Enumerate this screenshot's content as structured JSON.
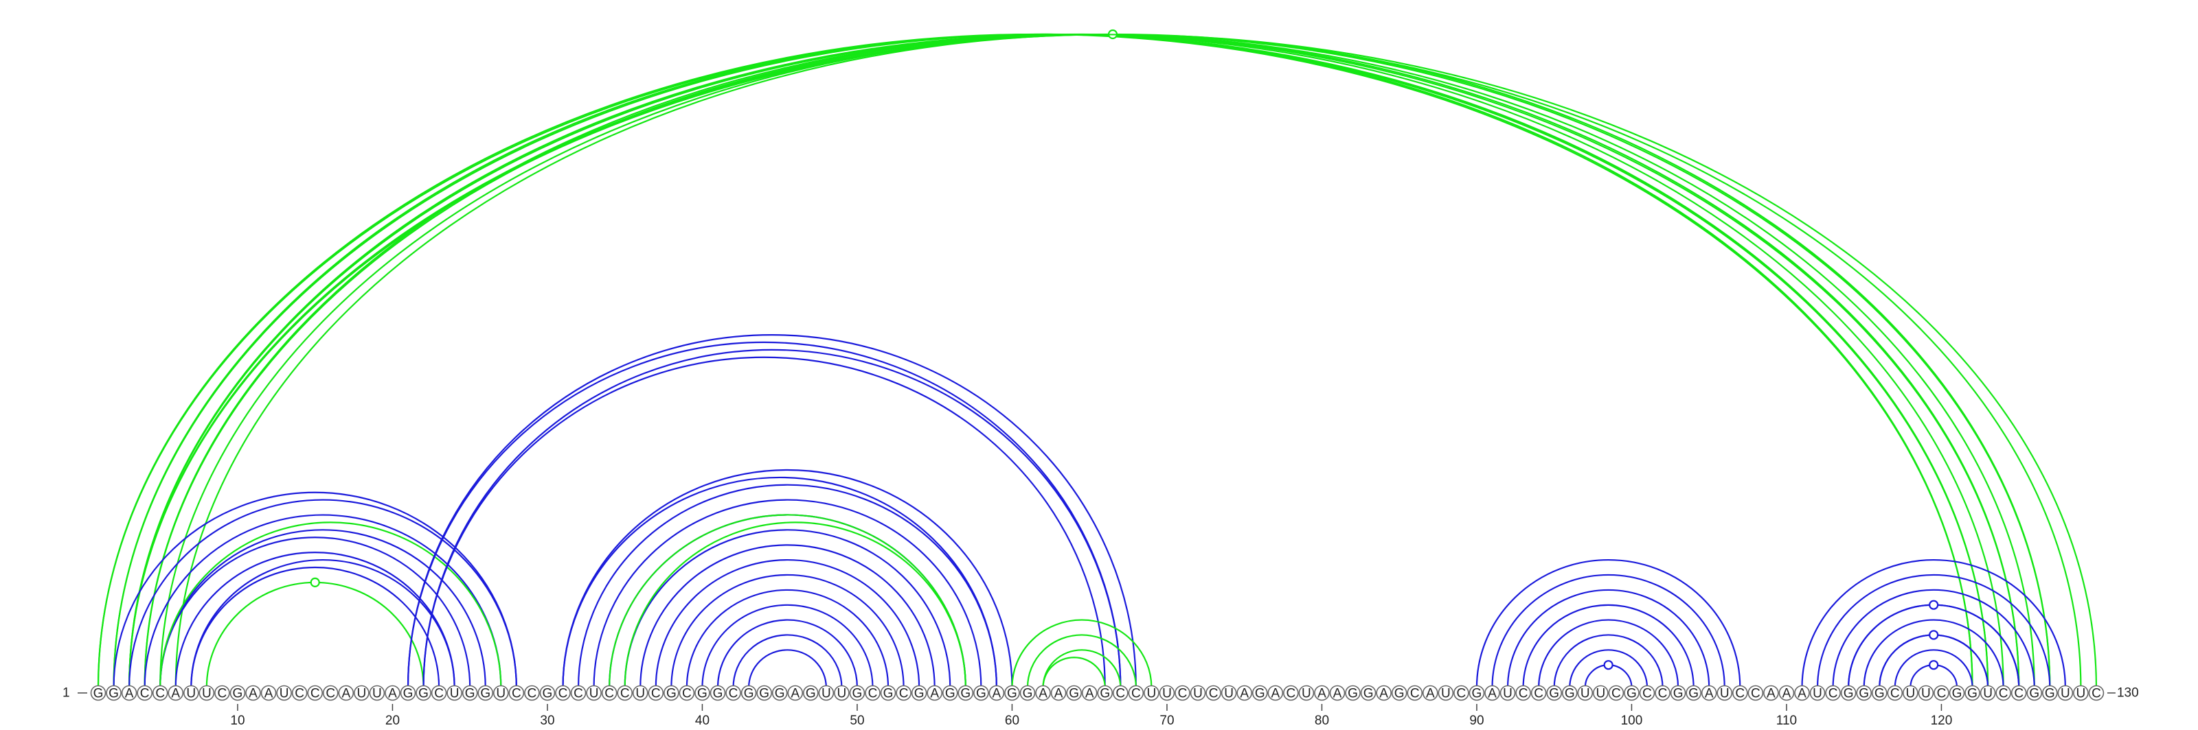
{
  "sequence": "GGACCAUUCGAAUCCCAUUAGGCUGGUCCGCCUCCUCGCGGCGGGAGUUGCGCGAGGGAGGAAGAGCCUUCUCUAGACUAAGGAGCAUCGAUCCGGUUCGCCGGAUCCAAAUCGGGCUUCGGUCCGGUUC",
  "start_label": "1",
  "end_label": "130",
  "ticks": [
    10,
    20,
    30,
    40,
    50,
    60,
    70,
    80,
    90,
    100,
    110,
    120
  ],
  "colors": {
    "blue": "#1a1adb",
    "green": "#14e614"
  },
  "arcs": [
    {
      "c": "green",
      "i": 1,
      "j": 122
    },
    {
      "c": "green",
      "i": 1,
      "j": 123
    },
    {
      "c": "green",
      "i": 2,
      "j": 122
    },
    {
      "c": "green",
      "i": 2,
      "j": 123
    },
    {
      "c": "green",
      "i": 3,
      "j": 124
    },
    {
      "c": "green",
      "i": 3,
      "j": 125
    },
    {
      "c": "green",
      "i": 4,
      "j": 125
    },
    {
      "c": "green",
      "i": 4,
      "j": 126
    },
    {
      "c": "green",
      "i": 5,
      "j": 127
    },
    {
      "c": "green",
      "i": 6,
      "j": 127
    },
    {
      "c": "green",
      "i": 3,
      "j": 130,
      "dot": true
    },
    {
      "c": "green",
      "i": 3,
      "j": 129
    },
    {
      "c": "blue",
      "i": 2,
      "j": 28
    },
    {
      "c": "blue",
      "i": 3,
      "j": 28
    },
    {
      "c": "blue",
      "i": 4,
      "j": 27
    },
    {
      "c": "blue",
      "i": 5,
      "j": 26
    },
    {
      "c": "blue",
      "i": 5,
      "j": 25
    },
    {
      "c": "blue",
      "i": 6,
      "j": 24
    },
    {
      "c": "blue",
      "i": 7,
      "j": 24
    },
    {
      "c": "blue",
      "i": 7,
      "j": 23
    },
    {
      "c": "green",
      "i": 5,
      "j": 27
    },
    {
      "c": "green",
      "i": 8,
      "j": 22,
      "dot": true
    },
    {
      "c": "blue",
      "i": 21,
      "j": 67
    },
    {
      "c": "blue",
      "i": 21,
      "j": 68
    },
    {
      "c": "blue",
      "i": 22,
      "j": 66
    },
    {
      "c": "blue",
      "i": 22,
      "j": 67
    },
    {
      "c": "blue",
      "i": 31,
      "j": 60
    },
    {
      "c": "blue",
      "i": 31,
      "j": 59
    },
    {
      "c": "blue",
      "i": 32,
      "j": 59
    },
    {
      "c": "blue",
      "i": 33,
      "j": 58
    },
    {
      "c": "blue",
      "i": 34,
      "j": 57
    },
    {
      "c": "blue",
      "i": 35,
      "j": 56
    },
    {
      "c": "blue",
      "i": 36,
      "j": 55
    },
    {
      "c": "blue",
      "i": 37,
      "j": 54
    },
    {
      "c": "blue",
      "i": 38,
      "j": 53
    },
    {
      "c": "blue",
      "i": 39,
      "j": 52
    },
    {
      "c": "blue",
      "i": 40,
      "j": 51
    },
    {
      "c": "blue",
      "i": 41,
      "j": 50
    },
    {
      "c": "blue",
      "i": 42,
      "j": 49
    },
    {
      "c": "blue",
      "i": 43,
      "j": 48
    },
    {
      "c": "green",
      "i": 34,
      "j": 57
    },
    {
      "c": "green",
      "i": 35,
      "j": 57
    },
    {
      "c": "green",
      "i": 60,
      "j": 69
    },
    {
      "c": "green",
      "i": 61,
      "j": 68
    },
    {
      "c": "green",
      "i": 62,
      "j": 67
    },
    {
      "c": "green",
      "i": 62,
      "j": 66
    },
    {
      "c": "blue",
      "i": 90,
      "j": 107
    },
    {
      "c": "blue",
      "i": 91,
      "j": 106
    },
    {
      "c": "blue",
      "i": 92,
      "j": 105
    },
    {
      "c": "blue",
      "i": 93,
      "j": 104
    },
    {
      "c": "blue",
      "i": 94,
      "j": 103
    },
    {
      "c": "blue",
      "i": 95,
      "j": 102
    },
    {
      "c": "blue",
      "i": 96,
      "j": 101
    },
    {
      "c": "blue",
      "i": 97,
      "j": 100,
      "dot": true
    },
    {
      "c": "blue",
      "i": 111,
      "j": 128
    },
    {
      "c": "blue",
      "i": 112,
      "j": 127
    },
    {
      "c": "blue",
      "i": 113,
      "j": 126
    },
    {
      "c": "blue",
      "i": 114,
      "j": 125
    },
    {
      "c": "blue",
      "i": 115,
      "j": 124
    },
    {
      "c": "blue",
      "i": 116,
      "j": 123
    },
    {
      "c": "blue",
      "i": 117,
      "j": 122
    },
    {
      "c": "blue",
      "i": 118,
      "j": 121,
      "dot": true
    },
    {
      "c": "blue",
      "i": 114,
      "j": 125,
      "dot": true
    },
    {
      "c": "blue",
      "i": 116,
      "j": 123,
      "dot": true
    }
  ]
}
